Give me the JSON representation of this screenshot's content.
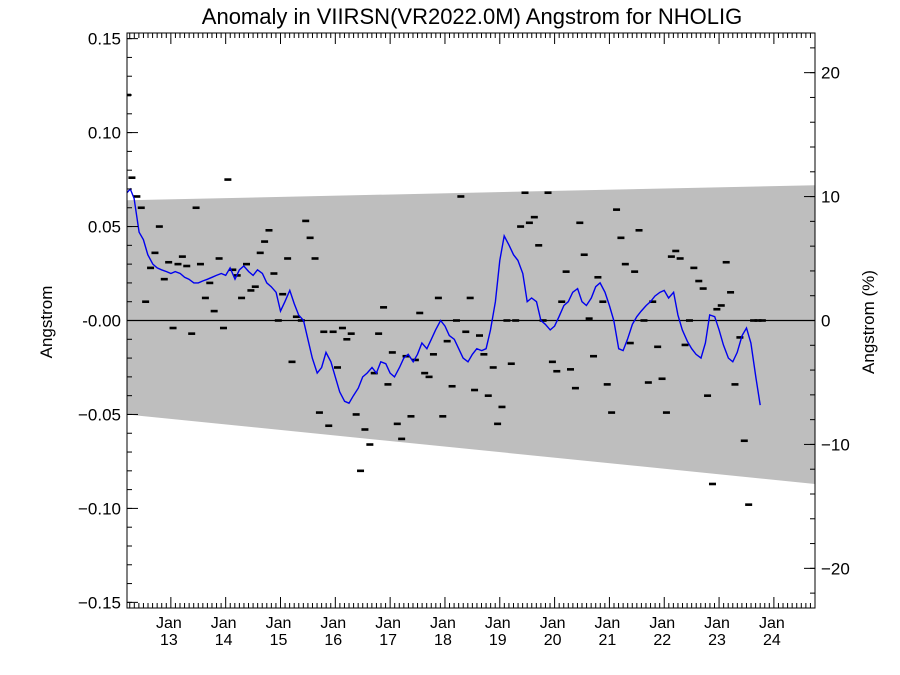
{
  "chart_data": {
    "type": "scatter",
    "title": "Anomaly in VIIRSN(VR2022.0M) Angstrom for NHOLIG",
    "ylabel": "Angstrom",
    "ylabel_right": "Angstrom (%)",
    "xlim": [
      2012.2,
      2024.75
    ],
    "ylim": [
      -0.153,
      0.153
    ],
    "ylim_right": [
      -23.2,
      23.2
    ],
    "yticks": [
      0.15,
      0.1,
      0.05,
      0.0,
      -0.05,
      -0.1,
      -0.15
    ],
    "ytick_labels": [
      "0.15",
      "0.10",
      "0.05",
      "-0.00",
      "−0.05",
      "−0.10",
      "−0.15"
    ],
    "yticks_right": [
      20,
      10,
      0,
      -10,
      -20
    ],
    "ytick_right_labels": [
      "20",
      "10",
      "0",
      "−10",
      "−20"
    ],
    "xticks": [
      {
        "x": 2013.0,
        "month": "Jan",
        "year": "13"
      },
      {
        "x": 2014.0,
        "month": "Jan",
        "year": "14"
      },
      {
        "x": 2015.0,
        "month": "Jan",
        "year": "15"
      },
      {
        "x": 2016.0,
        "month": "Jan",
        "year": "16"
      },
      {
        "x": 2017.0,
        "month": "Jan",
        "year": "17"
      },
      {
        "x": 2018.0,
        "month": "Jan",
        "year": "18"
      },
      {
        "x": 2019.0,
        "month": "Jan",
        "year": "19"
      },
      {
        "x": 2020.0,
        "month": "Jan",
        "year": "20"
      },
      {
        "x": 2021.0,
        "month": "Jan",
        "year": "21"
      },
      {
        "x": 2022.0,
        "month": "Jan",
        "year": "22"
      },
      {
        "x": 2023.0,
        "month": "Jan",
        "year": "23"
      },
      {
        "x": 2024.0,
        "month": "Jan",
        "year": "24"
      }
    ],
    "band": {
      "upper": [
        [
          2012.2,
          0.064
        ],
        [
          2024.75,
          0.072
        ]
      ],
      "lower": [
        [
          2012.2,
          -0.05
        ],
        [
          2024.75,
          -0.087
        ]
      ],
      "color": "#bebebe"
    },
    "zero_line": 0,
    "scatter_color": "#000000",
    "line_color": "#0000ee",
    "monthly_points": [
      [
        2012.21,
        0.12
      ],
      [
        2012.29,
        0.076
      ],
      [
        2012.38,
        0.066
      ],
      [
        2012.46,
        0.06
      ],
      [
        2012.54,
        0.01
      ],
      [
        2012.63,
        0.028
      ],
      [
        2012.71,
        0.036
      ],
      [
        2012.79,
        0.05
      ],
      [
        2012.88,
        0.022
      ],
      [
        2012.96,
        0.031
      ],
      [
        2013.04,
        -0.004
      ],
      [
        2013.13,
        0.03
      ],
      [
        2013.21,
        0.034
      ],
      [
        2013.29,
        0.029
      ],
      [
        2013.38,
        -0.007
      ],
      [
        2013.46,
        0.06
      ],
      [
        2013.54,
        0.03
      ],
      [
        2013.63,
        0.012
      ],
      [
        2013.71,
        0.02
      ],
      [
        2013.79,
        0.005
      ],
      [
        2013.88,
        0.033
      ],
      [
        2013.96,
        -0.004
      ],
      [
        2014.04,
        0.075
      ],
      [
        2014.13,
        0.027
      ],
      [
        2014.21,
        0.024
      ],
      [
        2014.29,
        0.012
      ],
      [
        2014.38,
        0.03
      ],
      [
        2014.46,
        0.016
      ],
      [
        2014.54,
        0.018
      ],
      [
        2014.63,
        0.036
      ],
      [
        2014.71,
        0.042
      ],
      [
        2014.79,
        0.048
      ],
      [
        2014.88,
        0.025
      ],
      [
        2014.96,
        0.0
      ],
      [
        2015.04,
        0.014
      ],
      [
        2015.13,
        0.033
      ],
      [
        2015.21,
        -0.022
      ],
      [
        2015.29,
        0.002
      ],
      [
        2015.38,
        0.0
      ],
      [
        2015.46,
        0.053
      ],
      [
        2015.54,
        0.044
      ],
      [
        2015.63,
        0.033
      ],
      [
        2015.71,
        -0.049
      ],
      [
        2015.79,
        -0.006
      ],
      [
        2015.88,
        -0.056
      ],
      [
        2015.96,
        -0.006
      ],
      [
        2016.04,
        -0.025
      ],
      [
        2016.13,
        -0.004
      ],
      [
        2016.21,
        -0.01
      ],
      [
        2016.29,
        -0.007
      ],
      [
        2016.38,
        -0.05
      ],
      [
        2016.46,
        -0.08
      ],
      [
        2016.54,
        -0.058
      ],
      [
        2016.63,
        -0.066
      ],
      [
        2016.71,
        -0.028
      ],
      [
        2016.79,
        -0.007
      ],
      [
        2016.88,
        0.007
      ],
      [
        2016.96,
        -0.034
      ],
      [
        2017.04,
        -0.017
      ],
      [
        2017.13,
        -0.055
      ],
      [
        2017.21,
        -0.063
      ],
      [
        2017.29,
        -0.019
      ],
      [
        2017.38,
        -0.051
      ],
      [
        2017.46,
        -0.021
      ],
      [
        2017.54,
        0.004
      ],
      [
        2017.63,
        -0.028
      ],
      [
        2017.71,
        -0.03
      ],
      [
        2017.79,
        -0.018
      ],
      [
        2017.88,
        0.012
      ],
      [
        2017.96,
        -0.051
      ],
      [
        2018.04,
        -0.011
      ],
      [
        2018.13,
        -0.035
      ],
      [
        2018.21,
        0.0
      ],
      [
        2018.29,
        0.066
      ],
      [
        2018.38,
        -0.006
      ],
      [
        2018.46,
        0.012
      ],
      [
        2018.54,
        -0.037
      ],
      [
        2018.63,
        -0.008
      ],
      [
        2018.71,
        -0.018
      ],
      [
        2018.79,
        -0.04
      ],
      [
        2018.88,
        -0.025
      ],
      [
        2018.96,
        -0.055
      ],
      [
        2019.04,
        -0.046
      ],
      [
        2019.13,
        0.0
      ],
      [
        2019.21,
        -0.023
      ],
      [
        2019.29,
        0.0
      ],
      [
        2019.38,
        0.05
      ],
      [
        2019.46,
        0.068
      ],
      [
        2019.54,
        0.052
      ],
      [
        2019.63,
        0.055
      ],
      [
        2019.71,
        0.04
      ],
      [
        2019.79,
        0.0
      ],
      [
        2019.88,
        0.068
      ],
      [
        2019.96,
        -0.022
      ],
      [
        2020.04,
        -0.027
      ],
      [
        2020.13,
        0.01
      ],
      [
        2020.21,
        0.026
      ],
      [
        2020.29,
        -0.026
      ],
      [
        2020.38,
        -0.036
      ],
      [
        2020.46,
        0.052
      ],
      [
        2020.54,
        0.035
      ],
      [
        2020.63,
        0.001
      ],
      [
        2020.71,
        -0.019
      ],
      [
        2020.79,
        0.023
      ],
      [
        2020.88,
        0.01
      ],
      [
        2020.96,
        -0.034
      ],
      [
        2021.04,
        -0.049
      ],
      [
        2021.13,
        0.059
      ],
      [
        2021.21,
        0.044
      ],
      [
        2021.29,
        0.03
      ],
      [
        2021.38,
        -0.012
      ],
      [
        2021.46,
        0.026
      ],
      [
        2021.54,
        0.048
      ],
      [
        2021.63,
        0.0
      ],
      [
        2021.71,
        -0.033
      ],
      [
        2021.79,
        0.01
      ],
      [
        2021.88,
        -0.014
      ],
      [
        2021.96,
        -0.031
      ],
      [
        2022.04,
        -0.049
      ],
      [
        2022.13,
        0.034
      ],
      [
        2022.21,
        0.037
      ],
      [
        2022.29,
        0.033
      ],
      [
        2022.38,
        -0.013
      ],
      [
        2022.46,
        0.0
      ],
      [
        2022.54,
        0.028
      ],
      [
        2022.63,
        0.021
      ],
      [
        2022.71,
        0.017
      ],
      [
        2022.79,
        -0.04
      ],
      [
        2022.88,
        -0.087
      ],
      [
        2022.96,
        0.006
      ],
      [
        2023.04,
        0.008
      ],
      [
        2023.13,
        0.031
      ],
      [
        2023.21,
        0.015
      ],
      [
        2023.29,
        -0.034
      ],
      [
        2023.38,
        -0.009
      ],
      [
        2023.46,
        -0.064
      ],
      [
        2023.54,
        -0.098
      ],
      [
        2023.63,
        0.0
      ],
      [
        2023.71,
        0.0
      ],
      [
        2023.79,
        0.0
      ]
    ],
    "running_mean": [
      [
        2012.2,
        0.068
      ],
      [
        2012.26,
        0.07
      ],
      [
        2012.33,
        0.065
      ],
      [
        2012.42,
        0.047
      ],
      [
        2012.5,
        0.043
      ],
      [
        2012.58,
        0.035
      ],
      [
        2012.67,
        0.03
      ],
      [
        2012.75,
        0.028
      ],
      [
        2012.83,
        0.027
      ],
      [
        2012.92,
        0.026
      ],
      [
        2013.0,
        0.025
      ],
      [
        2013.08,
        0.026
      ],
      [
        2013.17,
        0.025
      ],
      [
        2013.25,
        0.023
      ],
      [
        2013.33,
        0.022
      ],
      [
        2013.42,
        0.02
      ],
      [
        2013.5,
        0.02
      ],
      [
        2013.58,
        0.021
      ],
      [
        2013.67,
        0.022
      ],
      [
        2013.75,
        0.023
      ],
      [
        2013.83,
        0.024
      ],
      [
        2013.92,
        0.025
      ],
      [
        2014.0,
        0.024
      ],
      [
        2014.08,
        0.028
      ],
      [
        2014.17,
        0.022
      ],
      [
        2014.25,
        0.027
      ],
      [
        2014.33,
        0.029
      ],
      [
        2014.42,
        0.026
      ],
      [
        2014.5,
        0.024
      ],
      [
        2014.58,
        0.027
      ],
      [
        2014.67,
        0.025
      ],
      [
        2014.75,
        0.02
      ],
      [
        2014.83,
        0.018
      ],
      [
        2014.92,
        0.015
      ],
      [
        2015.0,
        0.005
      ],
      [
        2015.08,
        0.01
      ],
      [
        2015.17,
        0.016
      ],
      [
        2015.25,
        0.009
      ],
      [
        2015.33,
        0.003
      ],
      [
        2015.42,
        0.0
      ],
      [
        2015.5,
        -0.01
      ],
      [
        2015.58,
        -0.02
      ],
      [
        2015.67,
        -0.028
      ],
      [
        2015.75,
        -0.025
      ],
      [
        2015.83,
        -0.017
      ],
      [
        2015.92,
        -0.022
      ],
      [
        2016.0,
        -0.03
      ],
      [
        2016.08,
        -0.038
      ],
      [
        2016.17,
        -0.043
      ],
      [
        2016.25,
        -0.044
      ],
      [
        2016.33,
        -0.04
      ],
      [
        2016.42,
        -0.036
      ],
      [
        2016.5,
        -0.03
      ],
      [
        2016.58,
        -0.028
      ],
      [
        2016.67,
        -0.025
      ],
      [
        2016.75,
        -0.028
      ],
      [
        2016.83,
        -0.022
      ],
      [
        2016.92,
        -0.023
      ],
      [
        2017.0,
        -0.028
      ],
      [
        2017.08,
        -0.03
      ],
      [
        2017.17,
        -0.025
      ],
      [
        2017.25,
        -0.02
      ],
      [
        2017.33,
        -0.018
      ],
      [
        2017.42,
        -0.022
      ],
      [
        2017.5,
        -0.018
      ],
      [
        2017.58,
        -0.012
      ],
      [
        2017.67,
        -0.015
      ],
      [
        2017.75,
        -0.01
      ],
      [
        2017.83,
        -0.005
      ],
      [
        2017.92,
        0.0
      ],
      [
        2018.0,
        -0.003
      ],
      [
        2018.08,
        -0.008
      ],
      [
        2018.17,
        -0.01
      ],
      [
        2018.25,
        -0.015
      ],
      [
        2018.33,
        -0.02
      ],
      [
        2018.42,
        -0.022
      ],
      [
        2018.5,
        -0.018
      ],
      [
        2018.58,
        -0.015
      ],
      [
        2018.67,
        -0.016
      ],
      [
        2018.75,
        -0.015
      ],
      [
        2018.83,
        -0.005
      ],
      [
        2018.92,
        0.01
      ],
      [
        2019.0,
        0.032
      ],
      [
        2019.08,
        0.045
      ],
      [
        2019.17,
        0.04
      ],
      [
        2019.25,
        0.035
      ],
      [
        2019.33,
        0.032
      ],
      [
        2019.42,
        0.025
      ],
      [
        2019.5,
        0.01
      ],
      [
        2019.58,
        0.012
      ],
      [
        2019.67,
        0.01
      ],
      [
        2019.75,
        0.0
      ],
      [
        2019.83,
        -0.002
      ],
      [
        2019.92,
        -0.005
      ],
      [
        2020.0,
        -0.003
      ],
      [
        2020.08,
        0.002
      ],
      [
        2020.17,
        0.008
      ],
      [
        2020.25,
        0.01
      ],
      [
        2020.33,
        0.015
      ],
      [
        2020.42,
        0.017
      ],
      [
        2020.5,
        0.01
      ],
      [
        2020.58,
        0.008
      ],
      [
        2020.67,
        0.012
      ],
      [
        2020.75,
        0.018
      ],
      [
        2020.83,
        0.02
      ],
      [
        2020.92,
        0.015
      ],
      [
        2021.0,
        0.008
      ],
      [
        2021.08,
        0.0
      ],
      [
        2021.17,
        -0.015
      ],
      [
        2021.25,
        -0.016
      ],
      [
        2021.33,
        -0.01
      ],
      [
        2021.42,
        -0.002
      ],
      [
        2021.5,
        0.002
      ],
      [
        2021.58,
        0.005
      ],
      [
        2021.67,
        0.008
      ],
      [
        2021.75,
        0.01
      ],
      [
        2021.83,
        0.013
      ],
      [
        2021.92,
        0.015
      ],
      [
        2022.0,
        0.016
      ],
      [
        2022.08,
        0.012
      ],
      [
        2022.17,
        0.015
      ],
      [
        2022.25,
        0.003
      ],
      [
        2022.33,
        -0.005
      ],
      [
        2022.42,
        -0.011
      ],
      [
        2022.5,
        -0.015
      ],
      [
        2022.58,
        -0.018
      ],
      [
        2022.67,
        -0.02
      ],
      [
        2022.75,
        -0.012
      ],
      [
        2022.83,
        0.003
      ],
      [
        2022.92,
        0.002
      ],
      [
        2023.0,
        -0.005
      ],
      [
        2023.08,
        -0.013
      ],
      [
        2023.17,
        -0.02
      ],
      [
        2023.25,
        -0.022
      ],
      [
        2023.33,
        -0.017
      ],
      [
        2023.42,
        -0.008
      ],
      [
        2023.5,
        -0.004
      ],
      [
        2023.58,
        -0.012
      ],
      [
        2023.67,
        -0.03
      ],
      [
        2023.75,
        -0.045
      ]
    ]
  }
}
